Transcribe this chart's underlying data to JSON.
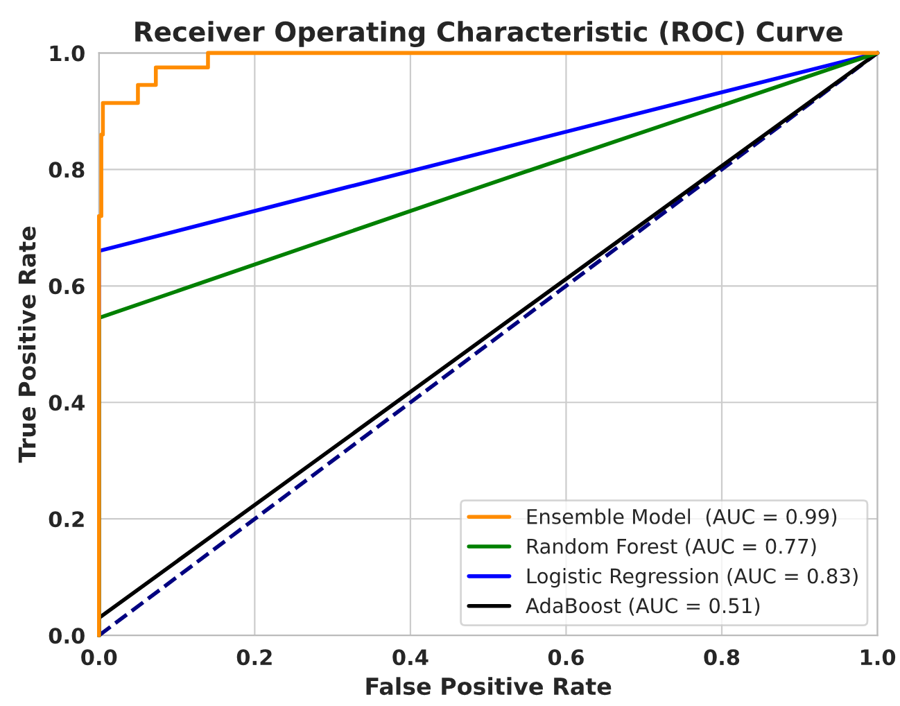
{
  "chart_data": {
    "type": "line",
    "title": "Receiver Operating Characteristic (ROC) Curve",
    "xlabel": "False Positive Rate",
    "ylabel": "True Positive Rate",
    "xlim": [
      0,
      1
    ],
    "ylim": [
      0,
      1
    ],
    "xticks": [
      {
        "value": 0,
        "label": "0.0"
      },
      0.2,
      0.4,
      0.6,
      0.8,
      {
        "value": 1,
        "label": "1.0"
      }
    ],
    "yticks": [
      {
        "value": 0,
        "label": "0.0"
      },
      0.2,
      0.4,
      0.6,
      0.8,
      {
        "value": 1,
        "label": "1.0"
      }
    ],
    "grid": true,
    "legend": "bottom right",
    "line_style": "solid",
    "marker": "none",
    "series": [
      {
        "name": "Ensemble Model  (AUC = 0.99)",
        "color": "#ff8c00",
        "x": [
          0,
          0,
          0.003,
          0.003,
          0.005,
          0.005,
          0.05,
          0.05,
          0.073,
          0.073,
          0.14,
          0.14,
          1
        ],
        "values": [
          0,
          0.72,
          0.72,
          0.86,
          0.86,
          0.914,
          0.914,
          0.945,
          0.945,
          0.975,
          0.975,
          1,
          1
        ]
      },
      {
        "name": "Random Forest (AUC = 0.77)",
        "color": "#008000",
        "x": [
          0,
          0,
          0.49,
          1
        ],
        "values": [
          0,
          0.545,
          0.77,
          1
        ]
      },
      {
        "name": "Logistic Regression (AUC = 0.83)",
        "color": "#0000ff",
        "x": [
          0,
          0,
          0.32,
          1
        ],
        "values": [
          0,
          0.66,
          0.77,
          1
        ]
      },
      {
        "name": "AdaBoost (AUC = 0.51)",
        "color": "#000000",
        "x": [
          0,
          0,
          1
        ],
        "values": [
          0,
          0.03,
          1
        ]
      },
      {
        "color": "#000080",
        "line_style": "dashed",
        "x": [
          0,
          1
        ],
        "values": [
          0,
          1
        ]
      }
    ]
  }
}
